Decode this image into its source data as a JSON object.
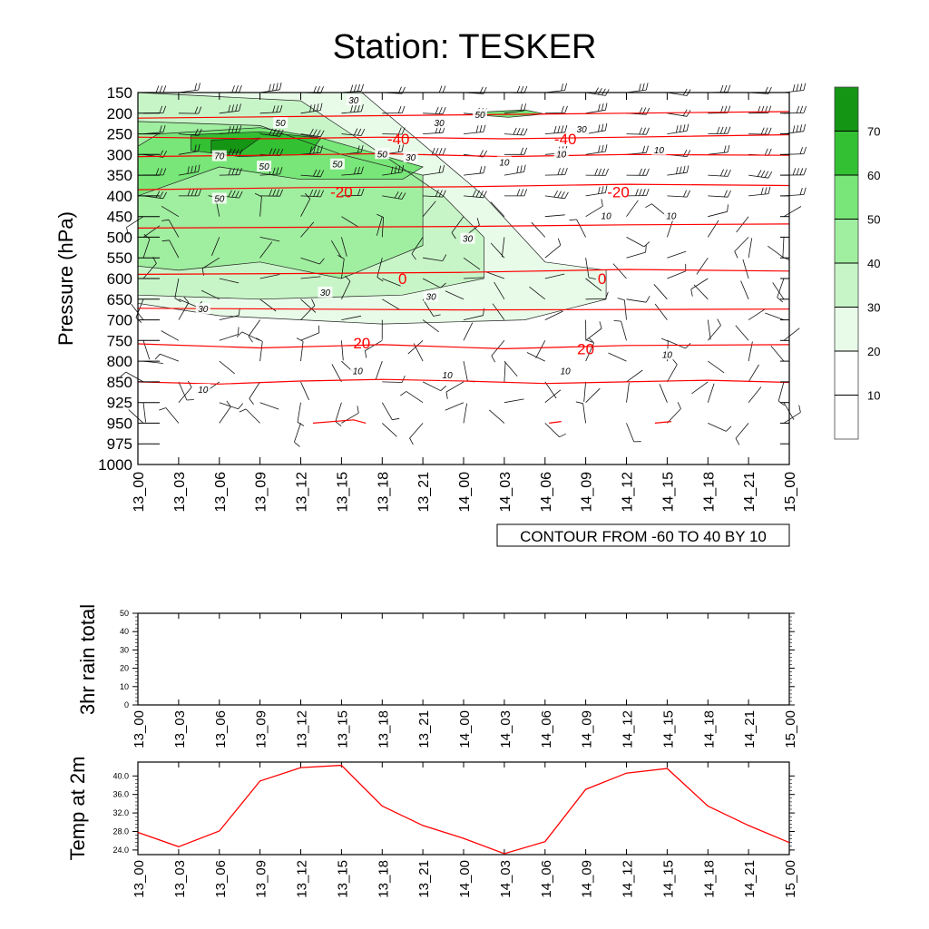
{
  "title": "Station: TESKER",
  "colors": {
    "temp_line": "#ff0000",
    "contour_line": "#000000",
    "barb": "#000000"
  },
  "chart_data": [
    {
      "type": "heatmap",
      "name": "wind-speed-cross-section",
      "ylabel": "Pressure (hPa)",
      "ylim": [
        1000,
        150
      ],
      "pressure_levels": [
        150,
        200,
        250,
        300,
        350,
        400,
        450,
        500,
        550,
        600,
        650,
        700,
        750,
        800,
        850,
        925,
        950,
        975,
        1000
      ],
      "x_ticks": [
        "13_00",
        "13_03",
        "13_06",
        "13_09",
        "13_12",
        "13_15",
        "13_18",
        "13_21",
        "14_00",
        "14_03",
        "14_06",
        "14_09",
        "14_12",
        "14_15",
        "14_18",
        "14_21",
        "15_00"
      ],
      "contour_info": "CONTOUR FROM -60 TO 40 BY 10",
      "colorbar": {
        "levels": [
          10,
          20,
          30,
          40,
          50,
          60,
          70
        ],
        "labels": [
          "10",
          "20",
          "30",
          "40",
          "50",
          "60",
          "70"
        ],
        "fills": [
          "#ffffff",
          "#ffffff",
          "#e8fbe8",
          "#c8f5c8",
          "#a0eea0",
          "#78e678",
          "#33c033",
          "#149614"
        ]
      },
      "shaded_regions": [
        {
          "level": 20,
          "times": [
            0,
            5.5,
            8.5,
            10,
            11.5,
            11.5,
            9.5,
            6,
            2,
            0
          ],
          "pressures": [
            150,
            150,
            400,
            560,
            580,
            650,
            700,
            710,
            690,
            660
          ]
        },
        {
          "level": 30,
          "times": [
            0,
            4,
            6,
            7.5,
            8.5,
            8.5,
            6.5,
            3,
            0
          ],
          "pressures": [
            150,
            170,
            300,
            400,
            500,
            600,
            640,
            650,
            640
          ]
        },
        {
          "level": 40,
          "times": [
            0,
            3,
            5,
            7,
            7,
            5,
            3,
            1,
            0
          ],
          "pressures": [
            220,
            230,
            300,
            350,
            520,
            600,
            560,
            580,
            570
          ]
        },
        {
          "level": 50,
          "times": [
            0.5,
            3,
            4.5,
            7,
            6.5,
            4,
            2,
            0,
            0
          ],
          "pressures": [
            250,
            235,
            260,
            330,
            360,
            360,
            330,
            400,
            280
          ]
        },
        {
          "level": 60,
          "times": [
            1.3,
            3,
            4.5,
            4.2,
            2.5,
            1.3
          ],
          "pressures": [
            252,
            245,
            260,
            300,
            305,
            290
          ]
        },
        {
          "level": 70,
          "times": [
            1.8,
            3,
            2.5,
            1.8
          ],
          "pressures": [
            265,
            260,
            295,
            295
          ]
        },
        {
          "level": 50,
          "times": [
            8.3,
            9.5,
            10,
            9.1,
            8.3
          ],
          "pressures": [
            198,
            192,
            202,
            210,
            204
          ]
        }
      ],
      "contour_labels": [
        {
          "text": "30",
          "t": 5.3,
          "p": 170
        },
        {
          "text": "50",
          "t": 3.5,
          "p": 225
        },
        {
          "text": "30",
          "t": 7.4,
          "p": 225
        },
        {
          "text": "50",
          "t": 8.4,
          "p": 205
        },
        {
          "text": "30",
          "t": 10.9,
          "p": 240
        },
        {
          "text": "70",
          "t": 2.0,
          "p": 305
        },
        {
          "text": "50",
          "t": 3.1,
          "p": 330
        },
        {
          "text": "50",
          "t": 4.9,
          "p": 325
        },
        {
          "text": "50",
          "t": 6.0,
          "p": 300
        },
        {
          "text": "30",
          "t": 6.7,
          "p": 308
        },
        {
          "text": "10",
          "t": 9.0,
          "p": 320
        },
        {
          "text": "10",
          "t": 10.4,
          "p": 300
        },
        {
          "text": "10",
          "t": 12.8,
          "p": 290
        },
        {
          "text": "50",
          "t": 2.0,
          "p": 408
        },
        {
          "text": "10",
          "t": 11.5,
          "p": 450
        },
        {
          "text": "10",
          "t": 13.1,
          "p": 450
        },
        {
          "text": "30",
          "t": 8.1,
          "p": 505
        },
        {
          "text": "30",
          "t": 4.6,
          "p": 635
        },
        {
          "text": "30",
          "t": 7.2,
          "p": 645
        },
        {
          "text": "30",
          "t": 1.6,
          "p": 675
        },
        {
          "text": "10",
          "t": 13.0,
          "p": 785
        },
        {
          "text": "10",
          "t": 5.4,
          "p": 825
        },
        {
          "text": "10",
          "t": 7.6,
          "p": 835
        },
        {
          "text": "10",
          "t": 10.5,
          "p": 825
        },
        {
          "text": "10",
          "t": 1.6,
          "p": 880
        }
      ],
      "temperature_contours": [
        {
          "value": -40,
          "label": "-40",
          "t": [
            0,
            4,
            8,
            12,
            16
          ],
          "p": [
            212,
            208,
            204,
            200,
            196
          ],
          "label_pos": [
            {
              "t": 6.4,
              "p": 262
            },
            {
              "t": 10.5,
              "p": 262
            }
          ]
        },
        {
          "value": -40,
          "label": "",
          "t": [
            0,
            3,
            6,
            9,
            12,
            16
          ],
          "p": [
            258,
            262,
            258,
            262,
            258,
            252
          ],
          "label_pos": []
        },
        {
          "value": -40,
          "label": "",
          "t": [
            0,
            3,
            6,
            9,
            12,
            16
          ],
          "p": [
            305,
            302,
            298,
            305,
            300,
            302
          ],
          "label_pos": []
        },
        {
          "value": -20,
          "label": "-20",
          "t": [
            0,
            4,
            8,
            12,
            16
          ],
          "p": [
            385,
            380,
            378,
            372,
            375
          ],
          "label_pos": [
            {
              "t": 5.0,
              "p": 390
            },
            {
              "t": 11.8,
              "p": 390
            }
          ]
        },
        {
          "value": 0,
          "label": "0",
          "t": [
            0,
            4,
            8,
            12,
            16
          ],
          "p": [
            478,
            476,
            474,
            470,
            468
          ],
          "label_pos": []
        },
        {
          "value": 0,
          "label": "0",
          "t": [
            0,
            4,
            8,
            12,
            16
          ],
          "p": [
            590,
            588,
            585,
            578,
            582
          ],
          "label_pos": [
            {
              "t": 6.5,
              "p": 600
            },
            {
              "t": 11.4,
              "p": 600
            }
          ]
        },
        {
          "value": 20,
          "label": "",
          "t": [
            0,
            4,
            8,
            12,
            16
          ],
          "p": [
            672,
            674,
            676,
            675,
            674
          ],
          "label_pos": []
        },
        {
          "value": 20,
          "label": "20",
          "t": [
            0,
            3,
            6,
            9,
            12,
            16
          ],
          "p": [
            758,
            768,
            760,
            770,
            762,
            760
          ],
          "label_pos": [
            {
              "t": 5.5,
              "p": 756
            },
            {
              "t": 11.0,
              "p": 770
            }
          ]
        },
        {
          "value": 40,
          "label": "",
          "t": [
            0,
            2,
            4,
            6,
            8,
            10,
            12,
            14,
            16
          ],
          "p": [
            850,
            858,
            848,
            844,
            848,
            856,
            850,
            846,
            852
          ],
          "label_pos": []
        },
        {
          "value": 40,
          "label": "",
          "t": [
            4.3,
            5.3,
            5.6
          ],
          "p": [
            950,
            946,
            950
          ],
          "label_pos": []
        },
        {
          "value": 40,
          "label": "",
          "t": [
            10.1,
            10.4
          ],
          "p": [
            950,
            948
          ],
          "label_pos": []
        },
        {
          "value": 40,
          "label": "",
          "t": [
            12.7,
            13.1
          ],
          "p": [
            950,
            948
          ],
          "label_pos": []
        }
      ],
      "wind_barbs": {
        "levels": [
          150,
          200,
          250,
          300,
          350,
          400,
          450,
          500,
          550,
          600,
          650,
          700,
          750,
          800,
          850,
          925,
          950
        ],
        "times": [
          0,
          1,
          2,
          3,
          4,
          5,
          6,
          7,
          8,
          9,
          10,
          11,
          12,
          13,
          14,
          15,
          16
        ],
        "note": "Wind barbs drawn at each pressure level and time step"
      }
    },
    {
      "type": "line",
      "name": "rain-panel",
      "ylabel": "3hr rain total",
      "ylim": [
        0,
        50
      ],
      "y_ticks": [
        0,
        10,
        20,
        30,
        40,
        50
      ],
      "categories": [
        "13_00",
        "13_03",
        "13_06",
        "13_09",
        "13_12",
        "13_15",
        "13_18",
        "13_21",
        "14_00",
        "14_03",
        "14_06",
        "14_09",
        "14_12",
        "14_15",
        "14_18",
        "14_21",
        "15_00"
      ],
      "values": [
        0,
        0,
        0,
        0,
        0,
        0,
        0,
        0,
        0,
        0,
        0,
        0,
        0,
        0,
        0,
        0,
        0
      ]
    },
    {
      "type": "line",
      "name": "temp-panel",
      "ylabel": "Temp at 2m",
      "ylim": [
        23,
        43
      ],
      "y_ticks": [
        24.0,
        28.0,
        32.0,
        36.0,
        40.0
      ],
      "y_tick_labels": [
        "24.0",
        "28.0",
        "32.0",
        "36.0",
        "40.0"
      ],
      "categories": [
        "13_00",
        "13_03",
        "13_06",
        "13_09",
        "13_12",
        "13_15",
        "13_18",
        "13_21",
        "14_00",
        "14_03",
        "14_06",
        "14_09",
        "14_12",
        "14_15",
        "14_18",
        "14_21",
        "15_00"
      ],
      "values": [
        27.8,
        24.7,
        28.1,
        38.9,
        41.8,
        42.3,
        33.5,
        29.3,
        26.5,
        23.2,
        25.8,
        37.1,
        40.6,
        41.6,
        33.5,
        29.3,
        25.6
      ]
    }
  ]
}
